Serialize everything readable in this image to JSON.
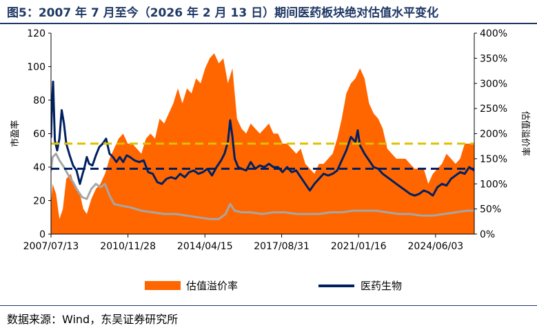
{
  "header": {
    "title": "图5：2007 年 7 月至今（2026 年 2 月 13 日）期间医药板块绝对估值水平变化"
  },
  "footer": {
    "source": "数据来源：Wind，东吴证券研究所"
  },
  "chart_data": {
    "type": "line",
    "ylabel": "市盈率",
    "y2label": "估值溢价率",
    "ylim": [
      0,
      120
    ],
    "y2lim": [
      0,
      4
    ],
    "x_tick_labels": [
      "2007/07/13",
      "2010/11/28",
      "2014/04/15",
      "2017/08/31",
      "2021/01/16",
      "2024/06/03"
    ],
    "x_ticks": [
      2007.53,
      2010.91,
      2014.29,
      2017.66,
      2021.04,
      2024.42
    ],
    "xlim": [
      2007.53,
      2026.12
    ],
    "y_ticks": [
      0,
      20,
      40,
      60,
      80,
      100,
      120
    ],
    "y2_ticks": [
      "0%",
      "50%",
      "100%",
      "150%",
      "200%",
      "250%",
      "300%",
      "350%",
      "400%"
    ],
    "grid": false,
    "legend_position": "bottom",
    "colors": {
      "premium_area": "#ff6600",
      "pharma_pe": "#002060",
      "market_pe": "#a6a6a6",
      "mean_pharma": "#002060",
      "upper_band": "#e0c000"
    },
    "reference_lines": [
      {
        "name": "upper_band",
        "y": 54,
        "style": "dashed"
      },
      {
        "name": "mean_pharma",
        "y": 39,
        "style": "dashed"
      }
    ],
    "series": [
      {
        "name": "估值溢价率",
        "kind": "area",
        "axis": "right",
        "x": [
          2007.53,
          2007.6,
          2007.75,
          2007.9,
          2008.05,
          2008.2,
          2008.4,
          2008.6,
          2008.8,
          2008.95,
          2009.1,
          2009.3,
          2009.5,
          2009.7,
          2009.9,
          2010.1,
          2010.3,
          2010.5,
          2010.7,
          2010.9,
          2011.1,
          2011.3,
          2011.5,
          2011.7,
          2011.9,
          2012.1,
          2012.3,
          2012.5,
          2012.7,
          2012.9,
          2013.1,
          2013.3,
          2013.5,
          2013.7,
          2013.9,
          2014.1,
          2014.3,
          2014.5,
          2014.7,
          2014.9,
          2015.1,
          2015.3,
          2015.5,
          2015.7,
          2015.9,
          2016.1,
          2016.3,
          2016.5,
          2016.7,
          2016.9,
          2017.1,
          2017.3,
          2017.5,
          2017.7,
          2017.9,
          2018.1,
          2018.3,
          2018.5,
          2018.7,
          2018.9,
          2019.1,
          2019.3,
          2019.5,
          2019.7,
          2019.9,
          2020.1,
          2020.3,
          2020.5,
          2020.7,
          2020.9,
          2021.1,
          2021.3,
          2021.5,
          2021.7,
          2021.9,
          2022.1,
          2022.3,
          2022.5,
          2022.7,
          2022.9,
          2023.1,
          2023.3,
          2023.5,
          2023.7,
          2023.9,
          2024.1,
          2024.3,
          2024.5,
          2024.7,
          2024.9,
          2025.1,
          2025.3,
          2025.5,
          2025.7,
          2025.9,
          2026.12
        ],
        "values": [
          0.6,
          1.0,
          0.8,
          0.3,
          0.5,
          1.1,
          1.2,
          0.9,
          0.8,
          0.5,
          0.4,
          0.7,
          0.9,
          1.0,
          1.2,
          1.5,
          1.7,
          1.9,
          2.0,
          1.8,
          1.8,
          1.7,
          1.6,
          1.9,
          2.0,
          1.9,
          2.3,
          2.2,
          2.4,
          2.6,
          2.9,
          2.6,
          2.9,
          2.8,
          3.1,
          3.0,
          3.3,
          3.5,
          3.6,
          3.4,
          3.5,
          3.0,
          3.3,
          2.3,
          2.1,
          2.0,
          2.2,
          2.1,
          2.0,
          2.1,
          2.2,
          2.0,
          2.0,
          1.8,
          1.8,
          1.7,
          1.6,
          1.7,
          1.4,
          1.3,
          1.2,
          1.4,
          1.4,
          1.5,
          1.6,
          1.9,
          2.3,
          2.8,
          3.0,
          3.1,
          3.3,
          3.1,
          2.6,
          2.4,
          2.3,
          2.1,
          1.7,
          1.6,
          1.5,
          1.5,
          1.5,
          1.4,
          1.3,
          1.3,
          1.3,
          1.0,
          1.2,
          1.3,
          1.4,
          1.6,
          1.5,
          1.4,
          1.5,
          1.8,
          1.8,
          1.8
        ]
      },
      {
        "name": "医药生物",
        "kind": "line",
        "axis": "left",
        "x": [
          2007.53,
          2007.58,
          2007.62,
          2007.7,
          2007.8,
          2007.9,
          2008.0,
          2008.1,
          2008.2,
          2008.35,
          2008.5,
          2008.65,
          2008.8,
          2008.9,
          2009.0,
          2009.1,
          2009.2,
          2009.35,
          2009.5,
          2009.65,
          2009.8,
          2009.95,
          2010.1,
          2010.25,
          2010.4,
          2010.55,
          2010.7,
          2010.85,
          2011.0,
          2011.2,
          2011.4,
          2011.6,
          2011.8,
          2012.0,
          2012.2,
          2012.4,
          2012.6,
          2012.8,
          2013.0,
          2013.2,
          2013.4,
          2013.6,
          2013.8,
          2014.0,
          2014.2,
          2014.4,
          2014.6,
          2014.8,
          2015.0,
          2015.15,
          2015.3,
          2015.4,
          2015.5,
          2015.6,
          2015.75,
          2015.9,
          2016.1,
          2016.3,
          2016.5,
          2016.7,
          2016.9,
          2017.1,
          2017.3,
          2017.5,
          2017.7,
          2017.9,
          2018.1,
          2018.3,
          2018.5,
          2018.7,
          2018.9,
          2019.1,
          2019.3,
          2019.5,
          2019.7,
          2019.9,
          2020.1,
          2020.3,
          2020.5,
          2020.7,
          2020.9,
          2021.0,
          2021.1,
          2021.3,
          2021.5,
          2021.7,
          2021.9,
          2022.1,
          2022.3,
          2022.5,
          2022.7,
          2022.9,
          2023.1,
          2023.3,
          2023.5,
          2023.7,
          2023.9,
          2024.1,
          2024.3,
          2024.5,
          2024.7,
          2024.9,
          2025.1,
          2025.3,
          2025.5,
          2025.7,
          2025.9,
          2026.12
        ],
        "values": [
          58,
          80,
          91,
          56,
          50,
          57,
          74,
          66,
          54,
          47,
          41,
          38,
          30,
          35,
          40,
          46,
          42,
          41,
          47,
          52,
          54,
          57,
          48,
          46,
          43,
          46,
          43,
          47,
          46,
          44,
          43,
          44,
          37,
          36,
          31,
          30,
          33,
          34,
          33,
          36,
          34,
          37,
          38,
          36,
          37,
          39,
          35,
          40,
          44,
          48,
          55,
          68,
          58,
          45,
          40,
          39,
          38,
          43,
          39,
          41,
          40,
          42,
          40,
          40,
          37,
          40,
          37,
          38,
          34,
          30,
          26,
          30,
          33,
          36,
          35,
          36,
          38,
          44,
          50,
          58,
          55,
          62,
          53,
          48,
          44,
          40,
          39,
          36,
          34,
          32,
          30,
          28,
          26,
          24,
          23,
          24,
          26,
          25,
          23,
          28,
          30,
          29,
          33,
          35,
          37,
          36,
          40,
          38
        ]
      },
      {
        "name": "market_pe",
        "kind": "line",
        "axis": "left",
        "x": [
          2007.53,
          2007.6,
          2007.75,
          2007.9,
          2008.1,
          2008.3,
          2008.5,
          2008.7,
          2008.9,
          2009.1,
          2009.3,
          2009.5,
          2009.7,
          2009.9,
          2010.1,
          2010.3,
          2010.6,
          2011.0,
          2011.5,
          2012.0,
          2012.5,
          2013.0,
          2013.5,
          2014.0,
          2014.5,
          2014.9,
          2015.2,
          2015.4,
          2015.6,
          2015.9,
          2016.3,
          2016.8,
          2017.3,
          2017.8,
          2018.3,
          2018.8,
          2019.3,
          2019.8,
          2020.3,
          2020.8,
          2021.3,
          2021.8,
          2022.3,
          2022.8,
          2023.3,
          2023.8,
          2024.3,
          2024.8,
          2025.3,
          2025.8,
          2026.12
        ],
        "values": [
          38,
          46,
          48,
          44,
          40,
          35,
          31,
          26,
          22,
          21,
          27,
          30,
          28,
          30,
          23,
          18,
          17,
          16,
          14,
          13,
          12,
          12,
          11,
          10,
          9,
          9,
          12,
          18,
          14,
          13,
          13,
          12,
          13,
          13,
          12,
          12,
          12,
          13,
          13,
          14,
          14,
          14,
          13,
          12,
          12,
          11,
          11,
          12,
          13,
          14,
          14
        ]
      }
    ]
  },
  "legend": {
    "items": [
      {
        "label": "估值溢价率",
        "kind": "area"
      },
      {
        "label": "医药生物",
        "kind": "line"
      }
    ]
  }
}
